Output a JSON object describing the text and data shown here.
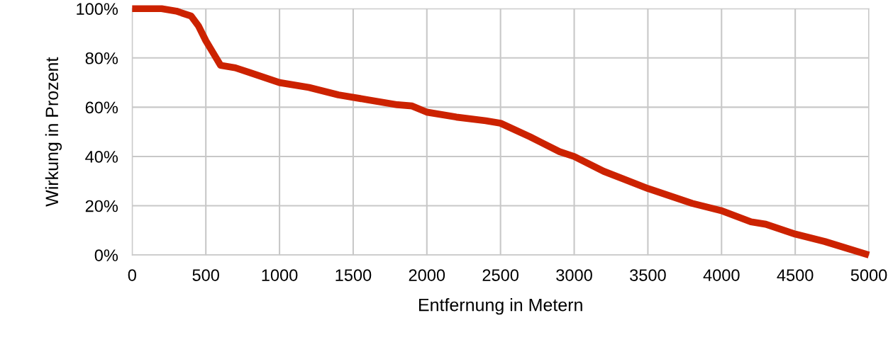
{
  "chart_data": {
    "type": "line",
    "xlabel": "Entfernung in Metern",
    "ylabel": "Wirkung in Prozent",
    "x": [
      0,
      200,
      300,
      400,
      450,
      500,
      550,
      600,
      700,
      800,
      1000,
      1200,
      1400,
      1600,
      1800,
      1900,
      2000,
      2200,
      2400,
      2500,
      2700,
      2900,
      3000,
      3200,
      3500,
      3800,
      4000,
      4200,
      4300,
      4500,
      4700,
      5000
    ],
    "series": [
      {
        "color": "#cc2200",
        "values": [
          100,
          100,
          99,
          97,
          93,
          87,
          82,
          77,
          76,
          74,
          70,
          68,
          65,
          63,
          61,
          60.5,
          58,
          56,
          54.5,
          53.5,
          48,
          42,
          40,
          34,
          27,
          21,
          18,
          13.5,
          12.5,
          8.5,
          5.5,
          0
        ]
      }
    ],
    "xlim": [
      0,
      5000
    ],
    "ylim": [
      0,
      100
    ],
    "xticks": [
      0,
      500,
      1000,
      1500,
      2000,
      2500,
      3000,
      3500,
      4000,
      4500,
      5000
    ],
    "yticks": [
      {
        "value": 0,
        "label": "0%"
      },
      {
        "value": 20,
        "label": "20%"
      },
      {
        "value": 40,
        "label": "40%"
      },
      {
        "value": 60,
        "label": "60%"
      },
      {
        "value": 80,
        "label": "80%"
      },
      {
        "value": 100,
        "label": "100%"
      }
    ],
    "grid": true,
    "marker": "none",
    "line_style": "solid"
  }
}
